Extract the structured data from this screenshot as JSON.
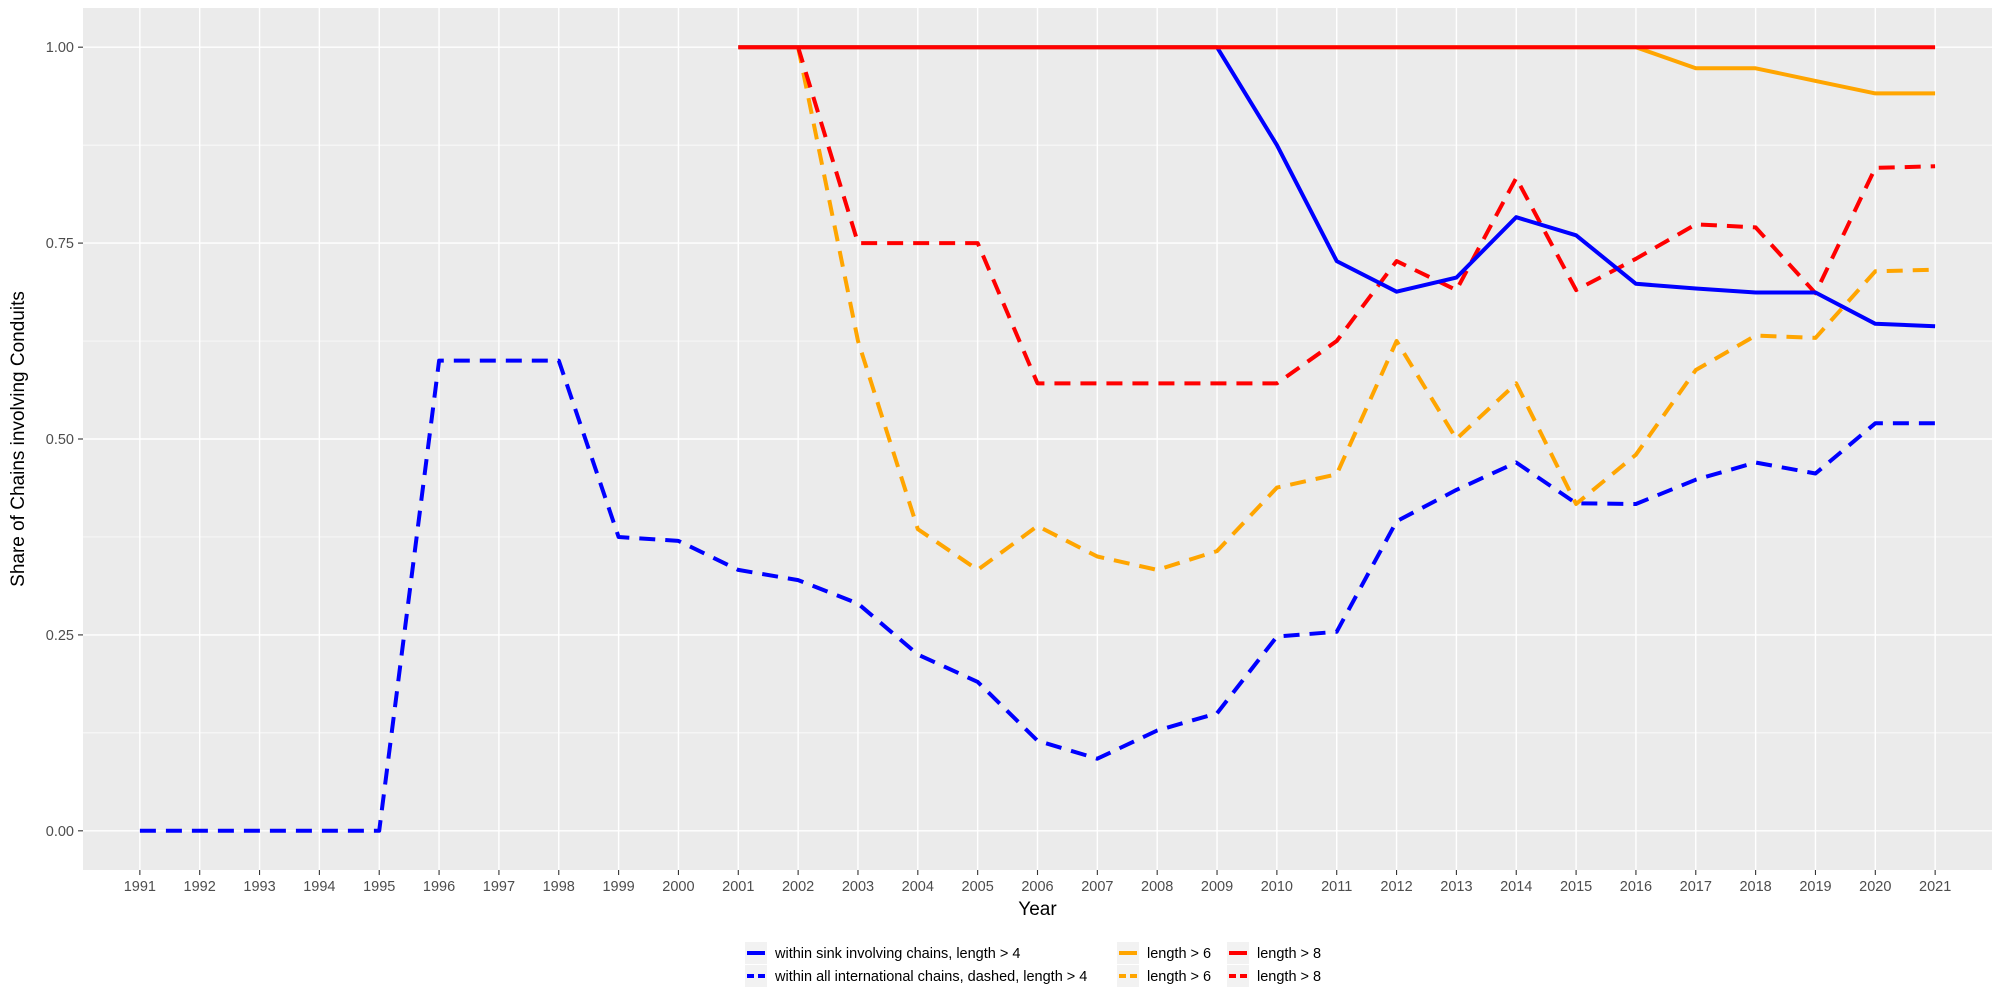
{
  "chart_data": {
    "type": "line",
    "title": "",
    "xlabel": "Year",
    "ylabel": "Share of Chains involving Conduits",
    "x": [
      1991,
      1992,
      1993,
      1994,
      1995,
      1996,
      1997,
      1998,
      1999,
      2000,
      2001,
      2002,
      2003,
      2004,
      2005,
      2006,
      2007,
      2008,
      2009,
      2010,
      2011,
      2012,
      2013,
      2014,
      2015,
      2016,
      2017,
      2018,
      2019,
      2020,
      2021
    ],
    "x_tick_labels": [
      "1991",
      "1992",
      "1993",
      "1994",
      "1995",
      "1996",
      "1997",
      "1998",
      "1999",
      "2000",
      "2001",
      "2002",
      "2003",
      "2004",
      "2005",
      "2006",
      "2007",
      "2008",
      "2009",
      "2010",
      "2011",
      "2012",
      "2013",
      "2014",
      "2015",
      "2016",
      "2017",
      "2018",
      "2019",
      "2020",
      "2021"
    ],
    "ylim": [
      -0.05,
      1.05
    ],
    "y_ticks": [
      0,
      0.25,
      0.5,
      0.75,
      1.0
    ],
    "y_tick_labels": [
      "0.00",
      "0.25",
      "0.50",
      "0.75",
      "1.00"
    ],
    "grid": true,
    "legend_position": "bottom",
    "series": [
      {
        "name": "within sink involving chains, length > 4",
        "color": "#0000ff",
        "style": "solid",
        "values": [
          null,
          null,
          null,
          null,
          null,
          null,
          null,
          null,
          null,
          null,
          1.0,
          1.0,
          1.0,
          1.0,
          1.0,
          1.0,
          1.0,
          1.0,
          1.0,
          0.875,
          0.727,
          0.688,
          0.706,
          0.783,
          0.76,
          0.698,
          0.692,
          0.687,
          0.687,
          0.647,
          0.644
        ]
      },
      {
        "name": "within all international chains, dashed, length > 4",
        "color": "#0000ff",
        "style": "dashed",
        "values": [
          0.0,
          0.0,
          0.0,
          0.0,
          0.0,
          0.6,
          0.6,
          0.6,
          0.375,
          0.37,
          0.333,
          0.32,
          0.29,
          0.225,
          0.19,
          0.115,
          0.092,
          0.128,
          0.15,
          0.248,
          0.254,
          0.395,
          0.435,
          0.47,
          0.418,
          0.417,
          0.448,
          0.47,
          0.456,
          0.52,
          0.52
        ]
      },
      {
        "name": "length > 6",
        "color": "#ffa500",
        "style": "solid",
        "values": [
          null,
          null,
          null,
          null,
          null,
          null,
          null,
          null,
          null,
          null,
          1.0,
          1.0,
          1.0,
          1.0,
          1.0,
          1.0,
          1.0,
          1.0,
          1.0,
          1.0,
          1.0,
          1.0,
          1.0,
          1.0,
          1.0,
          1.0,
          0.973,
          0.973,
          0.957,
          0.941,
          0.941
        ]
      },
      {
        "name": "length > 6",
        "color": "#ffa500",
        "style": "dashed",
        "values": [
          null,
          null,
          null,
          null,
          null,
          null,
          null,
          null,
          null,
          null,
          null,
          1.0,
          0.625,
          0.385,
          0.333,
          0.389,
          0.35,
          0.333,
          0.357,
          0.438,
          0.455,
          0.625,
          0.5,
          0.571,
          0.417,
          0.48,
          0.588,
          0.632,
          0.629,
          0.714,
          0.716
        ]
      },
      {
        "name": "length > 8",
        "color": "#ff0000",
        "style": "solid",
        "values": [
          null,
          null,
          null,
          null,
          null,
          null,
          null,
          null,
          null,
          null,
          1.0,
          1.0,
          1.0,
          1.0,
          1.0,
          1.0,
          1.0,
          1.0,
          1.0,
          1.0,
          1.0,
          1.0,
          1.0,
          1.0,
          1.0,
          1.0,
          1.0,
          1.0,
          1.0,
          1.0,
          1.0
        ]
      },
      {
        "name": "length > 8",
        "color": "#ff0000",
        "style": "dashed",
        "values": [
          null,
          null,
          null,
          null,
          null,
          null,
          null,
          null,
          null,
          null,
          null,
          1.0,
          0.75,
          0.75,
          0.75,
          0.571,
          0.571,
          0.571,
          0.571,
          0.571,
          0.625,
          0.727,
          0.69,
          0.833,
          0.69,
          0.73,
          0.774,
          0.77,
          0.686,
          0.846,
          0.848
        ]
      }
    ]
  }
}
